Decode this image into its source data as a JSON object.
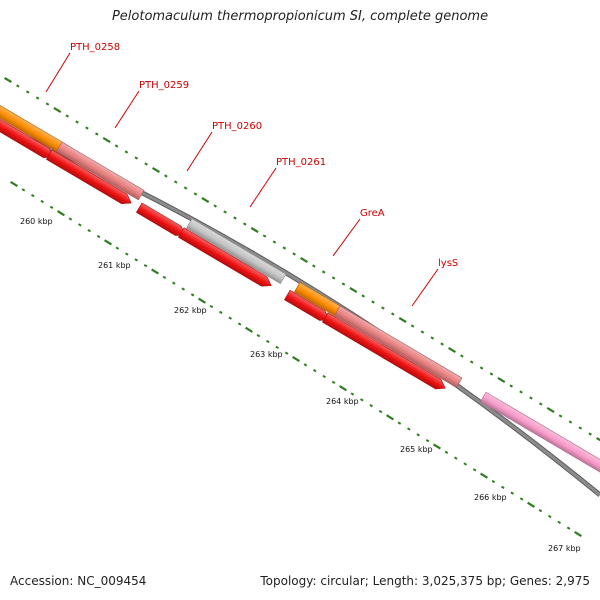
{
  "title": "Pelotomaculum thermopropionicum SI, complete genome",
  "footer": {
    "accession": "Accession: NC_009454",
    "summary": "Topology: circular; Length: 3,025,375 bp; Genes: 2,975"
  },
  "colors": {
    "backbone": "#8c8c8c",
    "tick": "#2e7d1e",
    "label": "#cc0000",
    "cds": "#ee1111",
    "orange": "#ff8c00",
    "salmon": "#e88080",
    "gray": "#c4c4c4",
    "pink": "#f79ac8"
  },
  "scale": {
    "unit": "kbp",
    "labels": [
      "260 kbp",
      "261 kbp",
      "262 kbp",
      "263 kbp",
      "264 kbp",
      "265 kbp",
      "266 kbp",
      "267 kbp"
    ]
  },
  "labeled_genes": [
    {
      "name": "PTH_0258",
      "color": "orange"
    },
    {
      "name": "PTH_0259",
      "color": "salmon"
    },
    {
      "name": "PTH_0260",
      "color": "gray"
    },
    {
      "name": "PTH_0261",
      "color": "gray"
    },
    {
      "name": "GreA",
      "color": "orange"
    },
    {
      "name": "lysS",
      "color": "salmon"
    }
  ]
}
